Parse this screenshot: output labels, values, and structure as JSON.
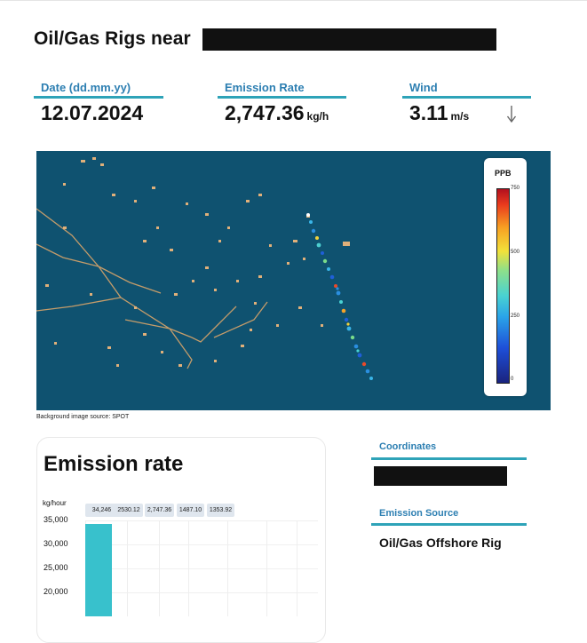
{
  "header": {
    "title": "Oil/Gas Rigs near"
  },
  "metrics": {
    "date": {
      "label": "Date (dd.mm.yy)",
      "value": "12.07.2024"
    },
    "emission_rate": {
      "label": "Emission Rate",
      "value": "2,747.36",
      "unit": "kg/h"
    },
    "wind": {
      "label": "Wind",
      "value": "3.11",
      "unit": "m/s",
      "direction_icon": "arrow-down-icon"
    }
  },
  "map": {
    "legend": {
      "title": "PPB",
      "ticks": [
        "750",
        "500",
        "250",
        "0"
      ]
    },
    "source": "Background image source: SPOT"
  },
  "emission_card": {
    "title": "Emission rate",
    "y_unit": "kg/hour",
    "y_ticks": [
      "35,000",
      "30,000",
      "25,000",
      "20,000"
    ],
    "value_pills": [
      "34,246",
      "2530.12",
      "2,747.36",
      "1487.10",
      "1353.92"
    ]
  },
  "side": {
    "coordinates_label": "Coordinates",
    "emission_source_label": "Emission Source",
    "emission_source_value": "Oil/Gas Offshore Rig"
  },
  "chart_data": {
    "type": "bar",
    "ylabel": "kg/hour",
    "series": [
      {
        "values": [
          34246,
          2530.12,
          2747.36,
          1487.1,
          1353.92
        ]
      }
    ],
    "ylim_visible": [
      20000,
      35000
    ]
  },
  "colors": {
    "accent": "#2ea3b8",
    "label": "#2d7fb2",
    "bar": "#38c1cc",
    "sea": "#0f5270"
  }
}
